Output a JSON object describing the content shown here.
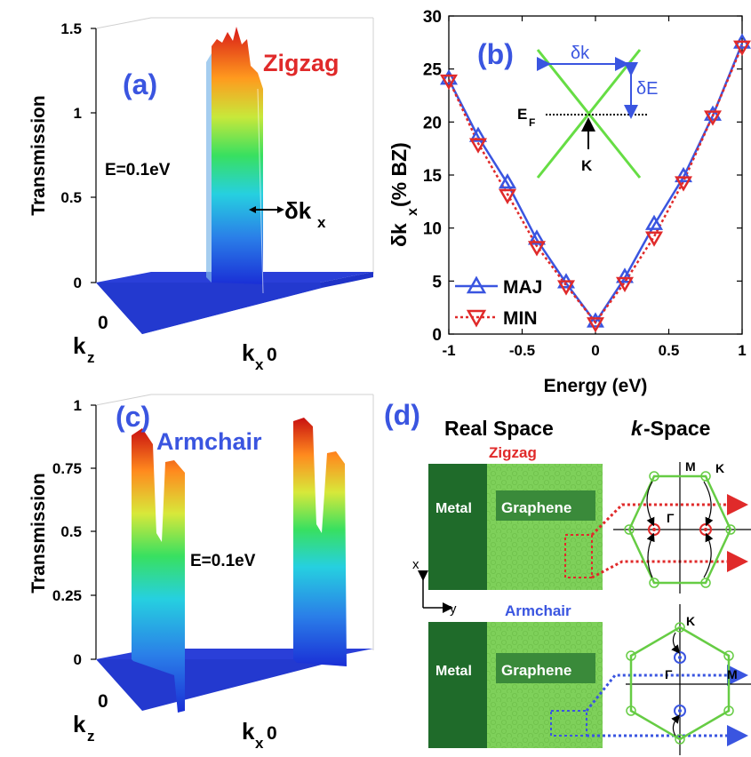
{
  "panels": {
    "a": {
      "letter": "(a)",
      "title": "Zigzag",
      "ylabel": "Transmission",
      "energy": "E=0.1eV",
      "width_label": "δk",
      "width_sub": "x",
      "kz": "k",
      "kz_sub": "z",
      "kz_zero": "0",
      "kx": "k",
      "kx_sub": "x",
      "kx_zero": "0",
      "yticks": [
        "0",
        "0.5",
        "1",
        "1.5"
      ]
    },
    "b": {
      "letter": "(b)",
      "inset": {
        "dk": "δk",
        "dE": "δE",
        "ef": "E",
        "ef_sub": "F",
        "k": "K"
      }
    },
    "c": {
      "letter": "(c)",
      "title": "Armchair",
      "ylabel": "Transmission",
      "energy": "E=0.1eV",
      "kz": "k",
      "kz_sub": "z",
      "kz_zero": "0",
      "kx": "k",
      "kx_sub": "x",
      "kx_zero": "0",
      "yticks": [
        "0",
        "0.25",
        "0.5",
        "0.75",
        "1"
      ]
    },
    "d": {
      "letter": "(d)",
      "real_space": "Real Space",
      "k_space_k": "k",
      "k_space_rest": "-Space",
      "zigzag": "Zigzag",
      "armchair": "Armchair",
      "metal": "Metal",
      "graphene": "Graphene",
      "axis_x": "x",
      "axis_y": "y",
      "label_M": "M",
      "label_K": "K",
      "label_gamma": "Γ"
    }
  },
  "chart_data": {
    "type": "line",
    "xlabel": "Energy (eV)",
    "ylabel_main": "δk",
    "ylabel_sub": "x",
    "ylabel_rest": " (% BZ)",
    "xlim": [
      -1,
      1
    ],
    "ylim": [
      0,
      30
    ],
    "xticks": [
      -1,
      -0.5,
      0,
      0.5,
      1
    ],
    "xtick_labels": [
      "-1",
      "-0.5",
      "0",
      "0.5",
      "1"
    ],
    "yticks": [
      0,
      5,
      10,
      15,
      20,
      25,
      30
    ],
    "legend_position": "bottom-left",
    "series": [
      {
        "name": "MAJ",
        "color": "#3a55e0",
        "marker": "triangle-up",
        "x": [
          -1,
          -0.8,
          -0.6,
          -0.4,
          -0.2,
          0,
          0.2,
          0.4,
          0.6,
          0.8,
          1
        ],
        "y": [
          24,
          18.6,
          14.2,
          8.9,
          4.8,
          1.1,
          5.3,
          10.3,
          14.8,
          20.6,
          27.4
        ]
      },
      {
        "name": "MIN",
        "color": "#e02a2a",
        "marker": "triangle-down",
        "x": [
          -1,
          -0.8,
          -0.6,
          -0.4,
          -0.2,
          0,
          0.2,
          0.4,
          0.6,
          0.8,
          1
        ],
        "y": [
          24,
          18,
          13.2,
          8.3,
          4.6,
          1.1,
          4.9,
          9.2,
          14.4,
          20.6,
          27.2
        ]
      }
    ]
  }
}
